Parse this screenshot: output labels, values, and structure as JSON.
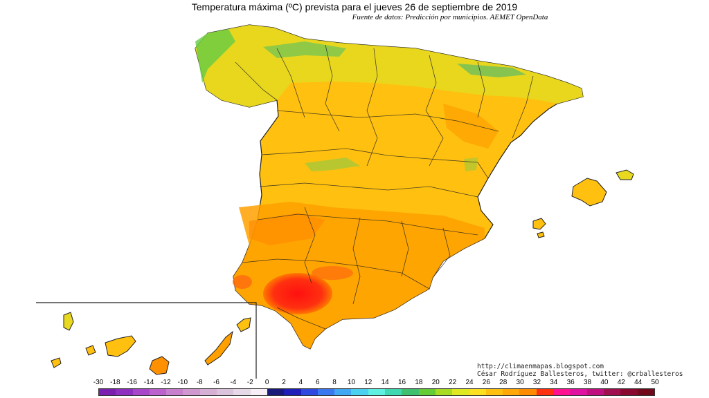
{
  "header": {
    "title": "Temperatura máxima (ºC) prevista para el jueves 26 de septiembre de 2019",
    "subtitle": "Fuente de datos: Predicción por municipios. AEMET OpenData"
  },
  "credits": {
    "line1": "http://climaenmapas.blogspot.com",
    "line2": "César Rodríguez Ballesteros, twitter: @crballesteros"
  },
  "legend": {
    "labels": [
      "-30",
      "-18",
      "-16",
      "-14",
      "-12",
      "-10",
      "-8",
      "-6",
      "-4",
      "-2",
      "0",
      "2",
      "4",
      "6",
      "8",
      "10",
      "12",
      "14",
      "16",
      "18",
      "20",
      "22",
      "24",
      "26",
      "28",
      "30",
      "32",
      "34",
      "36",
      "38",
      "40",
      "42",
      "44",
      "50"
    ],
    "colors": [
      "#7a1fb0",
      "#8f2fc0",
      "#a846c9",
      "#bb62cf",
      "#c87fce",
      "#cf99cf",
      "#d6afd4",
      "#dcc3dc",
      "#e6d8e6",
      "#f6f0f6",
      "#1a1a7a",
      "#2020b8",
      "#2d49e0",
      "#3a78f0",
      "#41a8f4",
      "#4cd0f0",
      "#5ef0e0",
      "#40d8b0",
      "#3ec070",
      "#66cc33",
      "#a8dc22",
      "#dfe820",
      "#ffe020",
      "#ffc010",
      "#ffa808",
      "#ff8c00",
      "#ff3010",
      "#ff1090",
      "#e010a0",
      "#c01080",
      "#a01050",
      "#880830",
      "#700a1a"
    ],
    "colors_comment": ""
  },
  "map": {
    "region_colors": {
      "north_coast": "#66cc44",
      "north_interior": "#e8d820",
      "meseta": "#ffc010",
      "south": "#ffa000",
      "hot_spot": "#ff1a10",
      "sea": "#ffffff",
      "border": "#202020"
    }
  }
}
